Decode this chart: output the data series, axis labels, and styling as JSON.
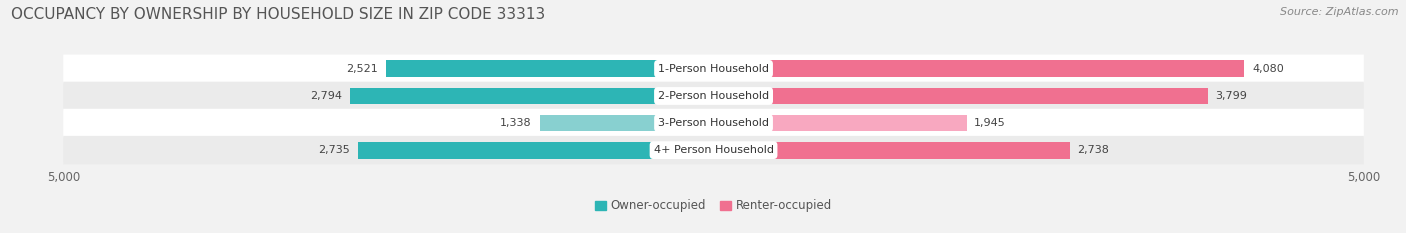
{
  "title": "OCCUPANCY BY OWNERSHIP BY HOUSEHOLD SIZE IN ZIP CODE 33313",
  "source": "Source: ZipAtlas.com",
  "categories": [
    "1-Person Household",
    "2-Person Household",
    "3-Person Household",
    "4+ Person Household"
  ],
  "owner_values": [
    2521,
    2794,
    1338,
    2735
  ],
  "renter_values": [
    4080,
    3799,
    1945,
    2738
  ],
  "owner_color": "#2db5b5",
  "renter_color": "#f07090",
  "owner_color_light": "#88d0d0",
  "renter_color_light": "#f8a8c0",
  "axis_max": 5000,
  "bg_color": "#f2f2f2",
  "row_colors": [
    "#ffffff",
    "#ebebeb",
    "#ffffff",
    "#ebebeb"
  ],
  "title_fontsize": 11,
  "source_fontsize": 8,
  "label_fontsize": 8,
  "cat_fontsize": 8,
  "tick_fontsize": 8.5,
  "legend_fontsize": 8.5
}
